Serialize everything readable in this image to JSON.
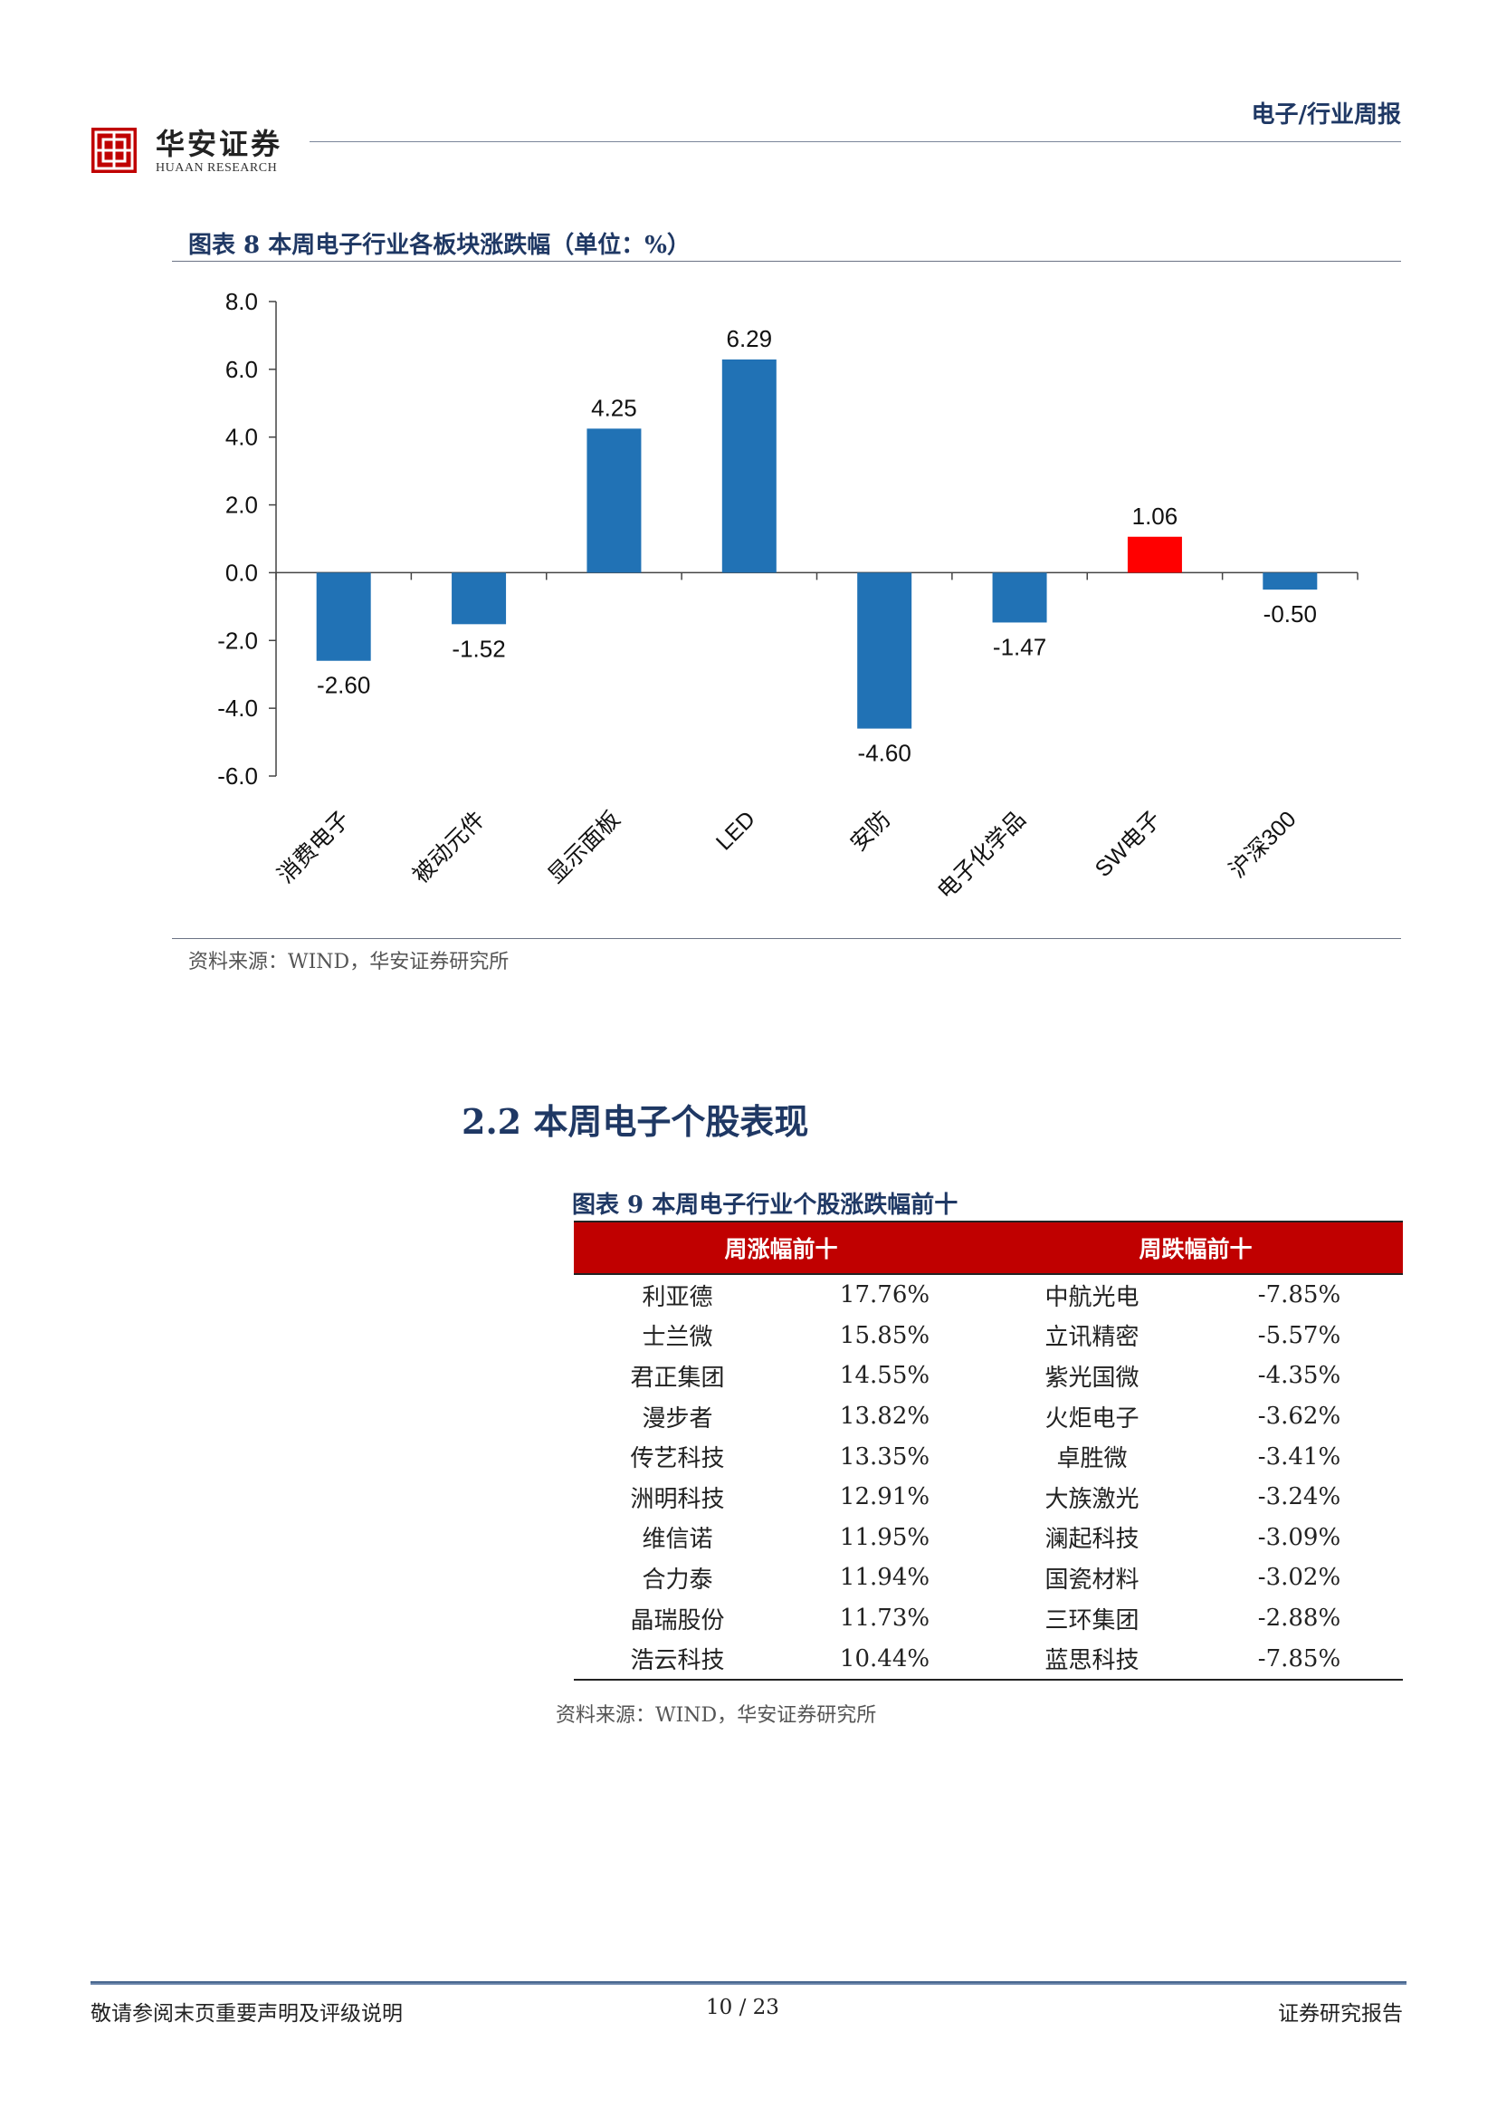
{
  "header": {
    "brand_cn": "华安证券",
    "brand_en": "HUAAN RESEARCH",
    "report_type": "电子/行业周报"
  },
  "figure8": {
    "title": "图表 8 本周电子行业各板块涨跌幅（单位：%）",
    "source": "资料来源：WIND，华安证券研究所"
  },
  "chart_data": {
    "type": "bar",
    "categories": [
      "消费电子",
      "被动元件",
      "显示面板",
      "LED",
      "安防",
      "电子化学品",
      "SW电子",
      "沪深300"
    ],
    "values": [
      -2.6,
      -1.52,
      4.25,
      6.29,
      -4.6,
      -1.47,
      1.06,
      -0.5
    ],
    "value_labels": [
      "-2.60",
      "-1.52",
      "4.25",
      "6.29",
      "-4.60",
      "-1.47",
      "1.06",
      "-0.50"
    ],
    "yticks": [
      "8.0",
      "6.0",
      "4.0",
      "2.0",
      "0.0",
      "-2.0",
      "-4.0",
      "-6.0"
    ],
    "ylim": [
      -6.0,
      8.0
    ],
    "grid": false,
    "colors": {
      "default": "#2172b5",
      "highlight": "#ff0000"
    },
    "highlight_category": "SW电子"
  },
  "section": {
    "heading": "2.2  本周电子个股表现"
  },
  "figure9": {
    "title": "图表 9 本周电子行业个股涨跌幅前十",
    "header_gainers": "周涨幅前十",
    "header_losers": "周跌幅前十",
    "rows": [
      {
        "g_name": "利亚德",
        "g_pct": "17.76%",
        "l_name": "中航光电",
        "l_pct": "-7.85%"
      },
      {
        "g_name": "士兰微",
        "g_pct": "15.85%",
        "l_name": "立讯精密",
        "l_pct": "-5.57%"
      },
      {
        "g_name": "君正集团",
        "g_pct": "14.55%",
        "l_name": "紫光国微",
        "l_pct": "-4.35%"
      },
      {
        "g_name": "漫步者",
        "g_pct": "13.82%",
        "l_name": "火炬电子",
        "l_pct": "-3.62%"
      },
      {
        "g_name": "传艺科技",
        "g_pct": "13.35%",
        "l_name": "卓胜微",
        "l_pct": "-3.41%"
      },
      {
        "g_name": "洲明科技",
        "g_pct": "12.91%",
        "l_name": "大族激光",
        "l_pct": "-3.24%"
      },
      {
        "g_name": "维信诺",
        "g_pct": "11.95%",
        "l_name": "澜起科技",
        "l_pct": "-3.09%"
      },
      {
        "g_name": "合力泰",
        "g_pct": "11.94%",
        "l_name": "国瓷材料",
        "l_pct": "-3.02%"
      },
      {
        "g_name": "晶瑞股份",
        "g_pct": "11.73%",
        "l_name": "三环集团",
        "l_pct": "-2.88%"
      },
      {
        "g_name": "浩云科技",
        "g_pct": "10.44%",
        "l_name": "蓝思科技",
        "l_pct": "-7.85%"
      }
    ],
    "source": "资料来源：WIND，华安证券研究所"
  },
  "footer": {
    "left": "敬请参阅末页重要声明及评级说明",
    "page": "10 / 23",
    "right": "证券研究报告"
  }
}
